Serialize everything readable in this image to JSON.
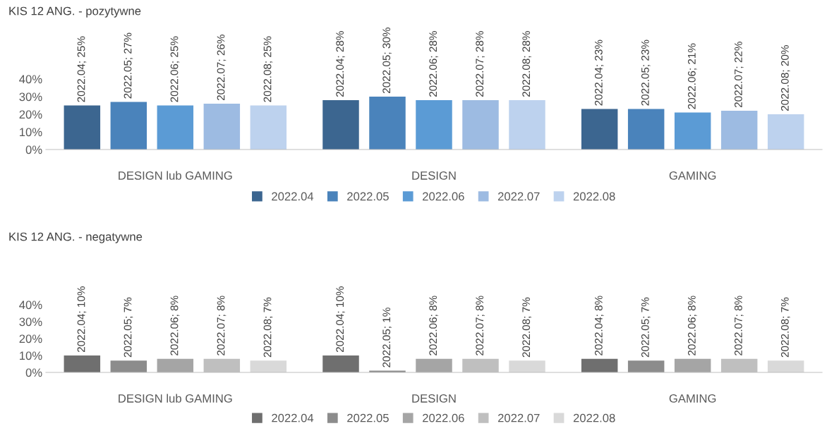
{
  "chart_data": [
    {
      "type": "bar",
      "title": "KIS 12 ANG. - pozytywne",
      "categories": [
        "DESIGN lub GAMING",
        "DESIGN",
        "GAMING"
      ],
      "ylim": [
        0,
        40
      ],
      "yticks": [
        {
          "value": 0,
          "label": "0%"
        },
        {
          "value": 10,
          "label": "10%"
        },
        {
          "value": 20,
          "label": "20%"
        },
        {
          "value": 30,
          "label": "30%"
        },
        {
          "value": 40,
          "label": "40%"
        }
      ],
      "grid": false,
      "legend": "bottom",
      "series": [
        {
          "name": "2022.04",
          "color": "#3c6690",
          "values": [
            25,
            28,
            23
          ],
          "value_labels": [
            "2022.04; 25%",
            "2022.04; 28%",
            "2022.04; 23%"
          ]
        },
        {
          "name": "2022.05",
          "color": "#4a83bb",
          "values": [
            27,
            30,
            23
          ],
          "value_labels": [
            "2022.05; 27%",
            "2022.05; 30%",
            "2022.05; 23%"
          ]
        },
        {
          "name": "2022.06",
          "color": "#5b9bd5",
          "values": [
            25,
            28,
            21
          ],
          "value_labels": [
            "2022.06; 25%",
            "2022.06; 28%",
            "2022.06; 21%"
          ]
        },
        {
          "name": "2022.07",
          "color": "#9dbbe2",
          "values": [
            26,
            28,
            22
          ],
          "value_labels": [
            "2022.07; 26%",
            "2022.07; 28%",
            "2022.07; 22%"
          ]
        },
        {
          "name": "2022.08",
          "color": "#bdd2ee",
          "values": [
            25,
            28,
            20
          ],
          "value_labels": [
            "2022.08; 25%",
            "2022.08; 28%",
            "2022.08; 20%"
          ]
        }
      ]
    },
    {
      "type": "bar",
      "title": "KIS 12 ANG. - negatywne",
      "categories": [
        "DESIGN lub GAMING",
        "DESIGN",
        "GAMING"
      ],
      "ylim": [
        0,
        40
      ],
      "yticks": [
        {
          "value": 0,
          "label": "0%"
        },
        {
          "value": 10,
          "label": "10%"
        },
        {
          "value": 20,
          "label": "20%"
        },
        {
          "value": 30,
          "label": "30%"
        },
        {
          "value": 40,
          "label": "40%"
        }
      ],
      "grid": false,
      "legend": "bottom",
      "series": [
        {
          "name": "2022.04",
          "color": "#6f6f6f",
          "values": [
            10,
            10,
            8
          ],
          "value_labels": [
            "2022.04; 10%",
            "2022.04; 10%",
            "2022.04; 8%"
          ]
        },
        {
          "name": "2022.05",
          "color": "#8c8c8c",
          "values": [
            7,
            1,
            7
          ],
          "value_labels": [
            "2022.05; 7%",
            "2022.05; 1%",
            "2022.05; 7%"
          ]
        },
        {
          "name": "2022.06",
          "color": "#a5a5a5",
          "values": [
            8,
            8,
            8
          ],
          "value_labels": [
            "2022.06; 8%",
            "2022.06; 8%",
            "2022.06; 8%"
          ]
        },
        {
          "name": "2022.07",
          "color": "#bfbfbf",
          "values": [
            8,
            8,
            8
          ],
          "value_labels": [
            "2022.07; 8%",
            "2022.07; 8%",
            "2022.07; 8%"
          ]
        },
        {
          "name": "2022.08",
          "color": "#d9d9d9",
          "values": [
            7,
            7,
            7
          ],
          "value_labels": [
            "2022.08; 7%",
            "2022.08; 7%",
            "2022.08; 7%"
          ]
        }
      ]
    }
  ]
}
